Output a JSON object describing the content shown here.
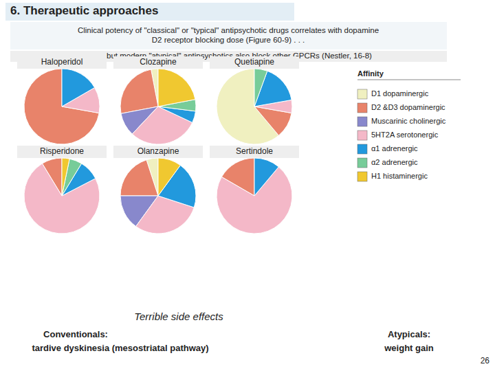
{
  "title": "6.  Therapeutic approaches",
  "subtitle": [
    "Clinical potency of \"classical\" or \"typical\" antipsychotic drugs correlates with dopamine\nD2 receptor blocking dose (Figure 60-9) . . .",
    ". . . . . but modern \"atypical\" antipsychotics also block other GPCRs (Nestler, 16-8)"
  ],
  "annotations": [
    "Affinity",
    "Terrible side effects",
    "Conventionals:",
    "tardive dyskinesia (mesostriatal pathway)",
    "Atypicals:",
    "weight gain",
    "26"
  ],
  "chart_data": [
    {
      "type": "pie",
      "title": "Haloperidol",
      "legend": "right",
      "categories": [
        "D1 dopaminergic",
        "D2 &D3 dopaminergic",
        "Muscarinic cholinergic",
        "5HT2A serotonergic",
        "α1 adrenergic",
        "α2 adrenergic",
        "H1 histaminergic"
      ],
      "values": [
        0,
        65,
        0,
        10,
        15,
        0,
        0
      ],
      "colors": [
        "#f0f0c0",
        "#e8836a",
        "#8888cc",
        "#f4b8c8",
        "#2299dd",
        "#77cc99",
        "#f0c830"
      ]
    },
    {
      "type": "pie",
      "title": "Clozapine",
      "categories": [
        "D1 dopaminergic",
        "D2 &D3 dopaminergic",
        "Muscarinic cholinergic",
        "5HT2A serotonergic",
        "α1 adrenergic",
        "α2 adrenergic",
        "H1 histaminergic"
      ],
      "values": [
        3,
        25,
        10,
        30,
        5,
        5,
        22
      ],
      "colors": [
        "#f0f0c0",
        "#e8836a",
        "#8888cc",
        "#f4b8c8",
        "#2299dd",
        "#77cc99",
        "#f0c830"
      ]
    },
    {
      "type": "pie",
      "title": "Quetiapine",
      "categories": [
        "D1 dopaminergic",
        "D2 &D3 dopaminergic",
        "Muscarinic cholinergic",
        "5HT2A serotonergic",
        "α1 adrenergic",
        "α2 adrenergic",
        "H1 histaminergic"
      ],
      "values": [
        55,
        10,
        0,
        5,
        15,
        5,
        0
      ],
      "colors": [
        "#f0f0c0",
        "#e8836a",
        "#8888cc",
        "#f4b8c8",
        "#2299dd",
        "#77cc99",
        "#f0c830"
      ]
    },
    {
      "type": "pie",
      "title": "Risperidone",
      "categories": [
        "D1 dopaminergic",
        "D2 &D3 dopaminergic",
        "Muscarinic cholinergic",
        "5HT2A serotonergic",
        "α1 adrenergic",
        "α2 adrenergic",
        "H1 histaminergic"
      ],
      "values": [
        0,
        8,
        0,
        68,
        8,
        5,
        3
      ],
      "colors": [
        "#f0f0c0",
        "#e8836a",
        "#8888cc",
        "#f4b8c8",
        "#2299dd",
        "#77cc99",
        "#f0c830"
      ]
    },
    {
      "type": "pie",
      "title": "Olanzapine",
      "categories": [
        "D1 dopaminergic",
        "D2 &D3 dopaminergic",
        "Muscarinic cholinergic",
        "5HT2A serotonergic",
        "α1 adrenergic",
        "α2 adrenergic",
        "H1 histaminergic"
      ],
      "values": [
        5,
        20,
        15,
        30,
        20,
        0,
        10
      ],
      "colors": [
        "#f0f0c0",
        "#e8836a",
        "#8888cc",
        "#f4b8c8",
        "#2299dd",
        "#77cc99",
        "#f0c830"
      ]
    },
    {
      "type": "pie",
      "title": "Sertindole",
      "categories": [
        "D1 dopaminergic",
        "D2 &D3 dopaminergic",
        "Muscarinic cholinergic",
        "5HT2A serotonergic",
        "α1 adrenergic",
        "α2 adrenergic",
        "H1 histaminergic"
      ],
      "values": [
        0,
        15,
        0,
        65,
        10,
        0,
        0
      ],
      "colors": [
        "#f0f0c0",
        "#e8836a",
        "#8888cc",
        "#f4b8c8",
        "#2299dd",
        "#77cc99",
        "#f0c830"
      ]
    }
  ]
}
